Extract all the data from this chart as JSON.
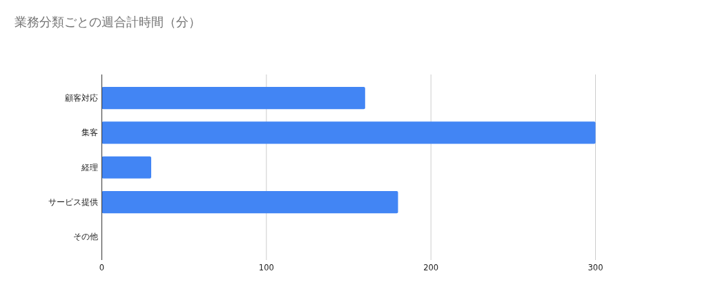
{
  "chart_data": {
    "type": "bar",
    "orientation": "horizontal",
    "title": "業務分類ごとの週合計時間（分）",
    "categories": [
      "顧客対応",
      "集客",
      "経理",
      "サービス提供",
      "その他"
    ],
    "values": [
      160,
      300,
      30,
      180,
      0
    ],
    "color": "#4285f4",
    "xlim": [
      0,
      300
    ],
    "xticks": [
      0,
      100,
      200,
      300
    ],
    "grid": "x"
  }
}
